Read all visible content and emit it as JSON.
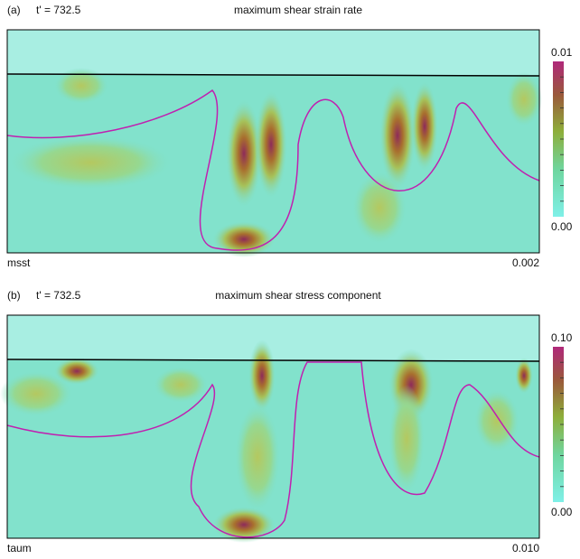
{
  "panels": [
    {
      "label": "(a)",
      "time": "t' = 732.5",
      "title": "maximum shear strain rate",
      "field": "msst",
      "interval": "0.002",
      "colorbar": {
        "max": "0.01",
        "min": "0.00"
      }
    },
    {
      "label": "(b)",
      "time": "t' = 732.5",
      "title": "maximum shear stress component",
      "field": "taum",
      "interval": "0.010",
      "colorbar": {
        "max": "0.10",
        "min": "0.00"
      }
    }
  ]
}
